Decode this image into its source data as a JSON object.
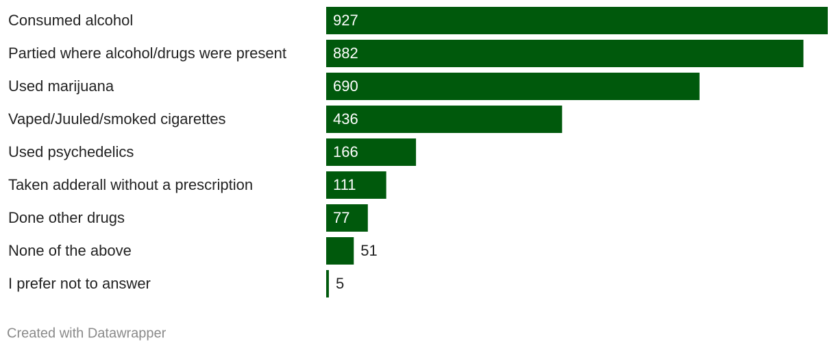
{
  "chart_data": {
    "type": "bar",
    "orientation": "horizontal",
    "categories": [
      "Consumed alcohol",
      "Partied where alcohol/drugs were present",
      "Used marijuana",
      "Vaped/Juuled/smoked cigarettes",
      "Used psychedelics",
      "Taken adderall without a prescription",
      "Done other drugs",
      "None of the above",
      "I prefer not to answer"
    ],
    "values": [
      927,
      882,
      690,
      436,
      166,
      111,
      77,
      51,
      5
    ],
    "color": "#00590c",
    "credit": "Created with Datawrapper"
  }
}
